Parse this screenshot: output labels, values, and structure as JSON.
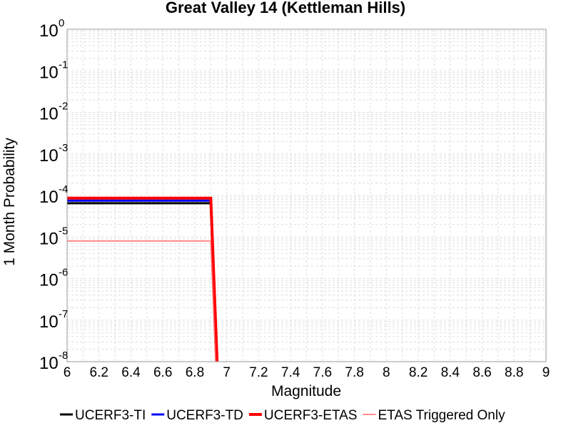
{
  "chart_data": {
    "type": "line",
    "title": "Great Valley 14 (Kettleman Hills)",
    "xlabel": "Magnitude",
    "ylabel": "1 Month Probability",
    "xlim": [
      6,
      9
    ],
    "ylim": [
      1e-08,
      1
    ],
    "yscale": "log",
    "grid": true,
    "legend_position": "bottom",
    "x_ticks": [
      "6",
      "6.2",
      "6.4",
      "6.6",
      "6.8",
      "7",
      "7.2",
      "7.4",
      "7.6",
      "7.8",
      "8",
      "8.2",
      "8.4",
      "8.6",
      "8.8",
      "9"
    ],
    "y_ticks": [
      {
        "base": "10",
        "exp": "-8"
      },
      {
        "base": "10",
        "exp": "-7"
      },
      {
        "base": "10",
        "exp": "-6"
      },
      {
        "base": "10",
        "exp": "-5"
      },
      {
        "base": "10",
        "exp": "-4"
      },
      {
        "base": "10",
        "exp": "-3"
      },
      {
        "base": "10",
        "exp": "-2"
      },
      {
        "base": "10",
        "exp": "-1"
      },
      {
        "base": "10",
        "exp": "0"
      }
    ],
    "series": [
      {
        "name": "UCERF3-TI",
        "color": "#000000",
        "width": 3,
        "points": [
          [
            6.0,
            6.5e-05
          ],
          [
            6.9,
            6.5e-05
          ],
          [
            6.935,
            1e-08
          ]
        ]
      },
      {
        "name": "UCERF3-TD",
        "color": "#0000ff",
        "width": 3,
        "points": [
          [
            6.0,
            7.5e-05
          ],
          [
            6.9,
            7.5e-05
          ],
          [
            6.935,
            1e-08
          ]
        ]
      },
      {
        "name": "UCERF3-ETAS",
        "color": "#ff0000",
        "width": 4,
        "points": [
          [
            6.0,
            8.6e-05
          ],
          [
            6.9,
            8.6e-05
          ],
          [
            6.94,
            1e-08
          ]
        ]
      },
      {
        "name": "ETAS Triggered Only",
        "color": "#ff6666",
        "width": 1.5,
        "points": [
          [
            6.0,
            8e-06
          ],
          [
            6.9,
            8e-06
          ],
          [
            6.93,
            1e-08
          ]
        ]
      }
    ]
  }
}
